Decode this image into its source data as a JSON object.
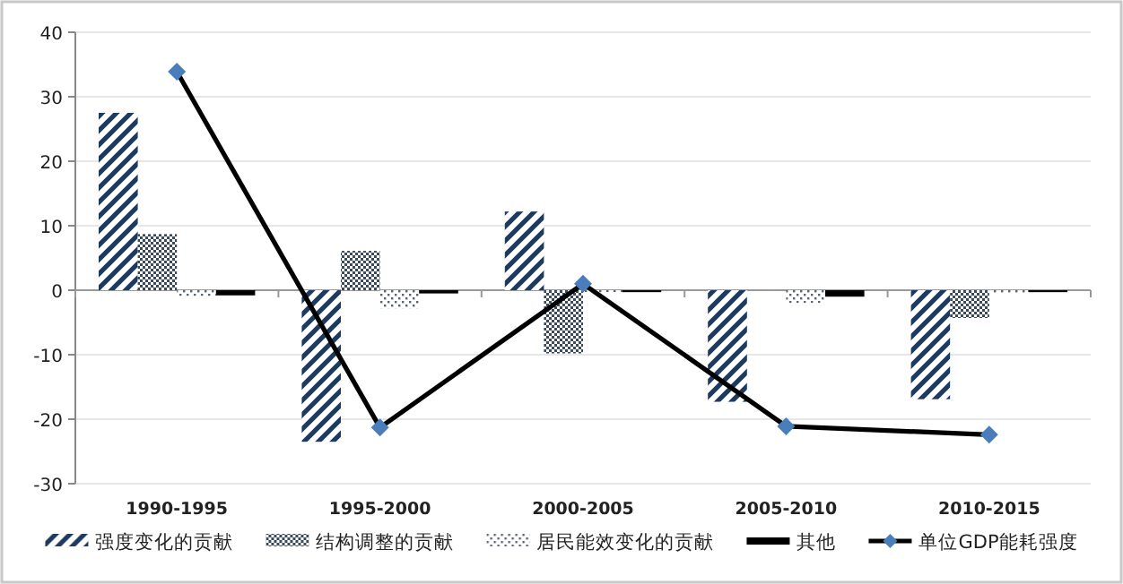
{
  "chart_data": {
    "type": "bar",
    "categories": [
      "1990-1995",
      "1995-2000",
      "2000-2005",
      "2005-2010",
      "2010-2015"
    ],
    "series": [
      {
        "name": "强度变化的贡献",
        "color": "#1f3a5c",
        "values": [
          27.5,
          -23.5,
          12.2,
          -17.3,
          -16.9
        ]
      },
      {
        "name": "结构调整的贡献",
        "color": "#3a4a5c",
        "values": [
          8.7,
          6.1,
          -9.8,
          0,
          -4.3
        ]
      },
      {
        "name": "居民能效变化的贡献",
        "color": "#5a6470",
        "values": [
          -0.9,
          -2.8,
          -0.3,
          -2.0,
          -0.5
        ]
      },
      {
        "name": "其他",
        "color": "#000000",
        "values": [
          -0.8,
          -0.5,
          -0.3,
          -1.0,
          -0.3
        ]
      },
      {
        "name": "单位GDP能耗强度",
        "type": "line",
        "color": "#000000",
        "marker": "diamond",
        "values": [
          33.9,
          -21.3,
          1.0,
          -21.1,
          -22.4
        ]
      }
    ],
    "ylim": [
      -30,
      40
    ],
    "yticks": [
      -30,
      -20,
      -10,
      0,
      10,
      20,
      30,
      40
    ],
    "grid": "y",
    "legend": "bottom"
  }
}
